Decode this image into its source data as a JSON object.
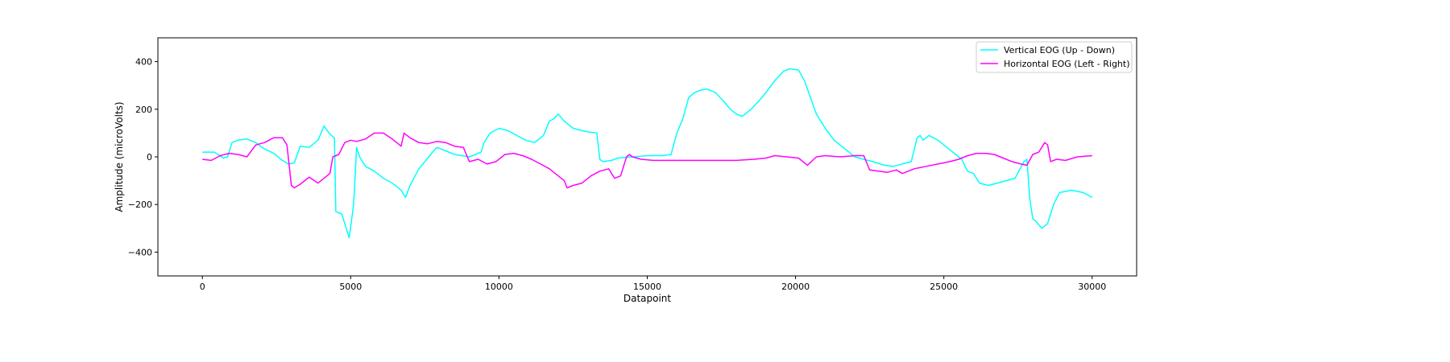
{
  "chart_data": {
    "type": "line",
    "title": "",
    "xlabel": "Datapoint",
    "ylabel": "Amplitude (microVolts)",
    "xlim": [
      -1500,
      31500
    ],
    "ylim": [
      -500,
      500
    ],
    "xticks": [
      0,
      5000,
      10000,
      15000,
      20000,
      25000,
      30000
    ],
    "xtick_labels": [
      "0",
      "5000",
      "10000",
      "15000",
      "20000",
      "25000",
      "30000"
    ],
    "yticks": [
      -400,
      -200,
      0,
      200,
      400
    ],
    "ytick_labels": [
      "−400",
      "−200",
      "0",
      "200",
      "400"
    ],
    "grid": false,
    "legend_position": "top-right",
    "series": [
      {
        "name": "Vertical EOG (Up - Down)",
        "color": "#00ffff",
        "x": [
          0,
          400,
          600,
          700,
          850,
          1000,
          1200,
          1500,
          1800,
          2000,
          2400,
          2700,
          2900,
          3100,
          3300,
          3600,
          3900,
          4100,
          4300,
          4450,
          4500,
          4700,
          4850,
          4950,
          5100,
          5200,
          5300,
          5500,
          5800,
          6100,
          6400,
          6700,
          6850,
          7000,
          7300,
          7500,
          7700,
          7900,
          8100,
          8500,
          9000,
          9400,
          9500,
          9700,
          10000,
          10300,
          10600,
          10900,
          11200,
          11500,
          11700,
          11850,
          12000,
          12200,
          12500,
          12800,
          13000,
          13300,
          13400,
          13500,
          13800,
          14000,
          14500,
          15000,
          15500,
          15800,
          16000,
          16200,
          16400,
          16600,
          16800,
          17000,
          17300,
          17600,
          17800,
          18000,
          18200,
          18500,
          18800,
          19000,
          19300,
          19600,
          19800,
          20100,
          20300,
          20500,
          20700,
          21000,
          21300,
          21600,
          21800,
          22000,
          22300,
          22600,
          23000,
          23300,
          23600,
          23900,
          24000,
          24100,
          24200,
          24300,
          24500,
          24800,
          25100,
          25400,
          25600,
          25800,
          26000,
          26200,
          26500,
          26800,
          27100,
          27400,
          27700,
          27800,
          27900,
          28000,
          28100,
          28300,
          28500,
          28700,
          28900,
          29300,
          29700,
          30000
        ],
        "values": [
          20,
          20,
          5,
          -5,
          0,
          60,
          70,
          75,
          60,
          40,
          15,
          -15,
          -30,
          -25,
          45,
          40,
          70,
          130,
          95,
          80,
          -230,
          -240,
          -300,
          -340,
          -200,
          40,
          0,
          -40,
          -60,
          -90,
          -110,
          -140,
          -170,
          -120,
          -50,
          -20,
          10,
          40,
          30,
          10,
          0,
          20,
          60,
          100,
          120,
          110,
          90,
          70,
          60,
          90,
          150,
          160,
          180,
          150,
          120,
          110,
          105,
          100,
          -10,
          -20,
          -15,
          -5,
          0,
          5,
          5,
          10,
          100,
          160,
          250,
          270,
          280,
          285,
          270,
          230,
          200,
          180,
          170,
          200,
          240,
          270,
          320,
          360,
          370,
          365,
          320,
          250,
          180,
          120,
          70,
          40,
          20,
          0,
          -10,
          -20,
          -35,
          -40,
          -30,
          -20,
          30,
          80,
          90,
          70,
          90,
          70,
          40,
          10,
          -10,
          -60,
          -70,
          -110,
          -120,
          -110,
          -100,
          -90,
          -20,
          -10,
          -180,
          -260,
          -270,
          -300,
          -280,
          -200,
          -150,
          -140,
          -150,
          -170
        ]
      },
      {
        "name": "Horizontal EOG (Left - Right)",
        "color": "#ff00ff",
        "x": [
          0,
          300,
          600,
          900,
          1200,
          1500,
          1800,
          2100,
          2400,
          2700,
          2850,
          3000,
          3100,
          3300,
          3600,
          3900,
          4100,
          4300,
          4400,
          4600,
          4800,
          5000,
          5200,
          5500,
          5800,
          6100,
          6400,
          6700,
          6800,
          7000,
          7300,
          7600,
          7900,
          8200,
          8500,
          8800,
          9000,
          9300,
          9600,
          9900,
          10200,
          10500,
          10800,
          11100,
          11400,
          11700,
          12000,
          12200,
          12300,
          12500,
          12800,
          13100,
          13400,
          13700,
          13900,
          14100,
          14300,
          14400,
          14500,
          14800,
          15200,
          15600,
          16000,
          17000,
          18000,
          18600,
          19000,
          19300,
          19700,
          20100,
          20400,
          20700,
          21000,
          21500,
          22000,
          22300,
          22500,
          22800,
          23100,
          23400,
          23600,
          23800,
          24000,
          24400,
          24800,
          25200,
          25500,
          25800,
          26100,
          26400,
          26700,
          27000,
          27300,
          27600,
          27800,
          28000,
          28200,
          28400,
          28500,
          28600,
          28800,
          29100,
          29500,
          30000
        ],
        "values": [
          -10,
          -15,
          5,
          15,
          10,
          0,
          50,
          60,
          80,
          80,
          50,
          -120,
          -130,
          -115,
          -85,
          -110,
          -90,
          -70,
          0,
          10,
          60,
          70,
          65,
          75,
          100,
          100,
          75,
          45,
          100,
          80,
          60,
          55,
          65,
          60,
          45,
          40,
          -20,
          -10,
          -30,
          -20,
          10,
          15,
          5,
          -10,
          -30,
          -50,
          -80,
          -100,
          -130,
          -120,
          -110,
          -80,
          -60,
          -50,
          -90,
          -80,
          0,
          10,
          0,
          -10,
          -15,
          -15,
          -15,
          -15,
          -15,
          -10,
          -5,
          5,
          0,
          -5,
          -35,
          0,
          5,
          0,
          5,
          5,
          -55,
          -60,
          -65,
          -55,
          -70,
          -60,
          -50,
          -40,
          -30,
          -20,
          -10,
          5,
          15,
          15,
          10,
          -5,
          -20,
          -30,
          -35,
          10,
          20,
          60,
          50,
          -20,
          -10,
          -15,
          0,
          5
        ]
      }
    ]
  }
}
